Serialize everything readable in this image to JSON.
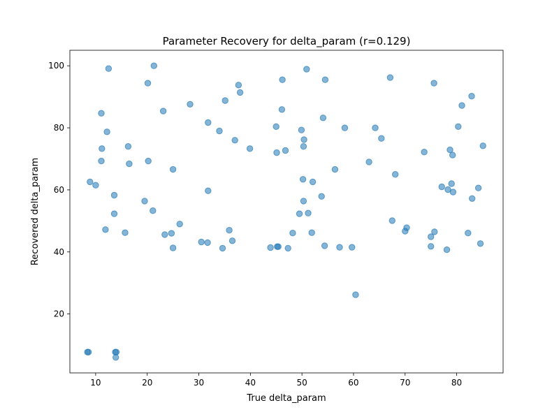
{
  "chart_data": {
    "type": "scatter",
    "title": "Parameter Recovery for delta_param (r=0.129)",
    "xlabel": "True delta_param",
    "ylabel": "Recovered delta_param",
    "xlim": [
      5,
      89
    ],
    "ylim": [
      1,
      105
    ],
    "xticks": [
      10,
      20,
      30,
      40,
      50,
      60,
      70,
      80
    ],
    "yticks": [
      20,
      40,
      60,
      80,
      100
    ],
    "grid": false,
    "marker_color": "#1f77b4",
    "marker_alpha": 0.55,
    "points": [
      [
        8.4,
        7.7
      ],
      [
        8.6,
        7.7
      ],
      [
        13.8,
        7.7
      ],
      [
        14.0,
        7.7
      ],
      [
        13.9,
        6.0
      ],
      [
        8.9,
        62.6
      ],
      [
        10.0,
        61.5
      ],
      [
        11.1,
        84.7
      ],
      [
        11.2,
        73.3
      ],
      [
        11.1,
        69.3
      ],
      [
        11.9,
        47.2
      ],
      [
        12.2,
        78.7
      ],
      [
        12.5,
        99.1
      ],
      [
        13.6,
        58.3
      ],
      [
        13.6,
        52.3
      ],
      [
        15.7,
        46.2
      ],
      [
        16.3,
        74.0
      ],
      [
        16.5,
        68.4
      ],
      [
        19.5,
        56.4
      ],
      [
        20.1,
        94.4
      ],
      [
        20.2,
        69.3
      ],
      [
        21.1,
        53.3
      ],
      [
        21.3,
        100.0
      ],
      [
        23.1,
        85.4
      ],
      [
        23.4,
        45.6
      ],
      [
        24.7,
        46.0
      ],
      [
        25.0,
        66.6
      ],
      [
        25.0,
        41.3
      ],
      [
        26.3,
        49.0
      ],
      [
        28.3,
        87.6
      ],
      [
        30.5,
        43.2
      ],
      [
        31.7,
        43.0
      ],
      [
        31.8,
        81.7
      ],
      [
        31.8,
        59.7
      ],
      [
        34.0,
        79.0
      ],
      [
        34.6,
        41.2
      ],
      [
        35.1,
        88.8
      ],
      [
        35.9,
        47.0
      ],
      [
        36.5,
        43.6
      ],
      [
        37.0,
        76.0
      ],
      [
        37.7,
        93.8
      ],
      [
        38.0,
        91.4
      ],
      [
        39.9,
        73.3
      ],
      [
        43.9,
        41.4
      ],
      [
        45.0,
        80.4
      ],
      [
        45.1,
        72.0
      ],
      [
        45.2,
        41.7
      ],
      [
        45.4,
        41.7
      ],
      [
        46.1,
        85.9
      ],
      [
        46.2,
        95.5
      ],
      [
        46.8,
        72.7
      ],
      [
        47.3,
        41.2
      ],
      [
        48.2,
        46.1
      ],
      [
        49.5,
        52.3
      ],
      [
        49.9,
        79.3
      ],
      [
        50.2,
        63.4
      ],
      [
        50.3,
        74.0
      ],
      [
        50.3,
        56.4
      ],
      [
        50.4,
        76.2
      ],
      [
        50.9,
        98.9
      ],
      [
        51.2,
        52.5
      ],
      [
        51.9,
        46.2
      ],
      [
        52.1,
        62.6
      ],
      [
        53.8,
        57.9
      ],
      [
        54.1,
        83.2
      ],
      [
        54.4,
        42.0
      ],
      [
        54.5,
        95.5
      ],
      [
        56.4,
        66.6
      ],
      [
        57.3,
        41.5
      ],
      [
        58.3,
        80.0
      ],
      [
        59.7,
        41.5
      ],
      [
        60.4,
        26.2
      ],
      [
        63.0,
        69.0
      ],
      [
        64.2,
        80.0
      ],
      [
        65.4,
        76.6
      ],
      [
        67.1,
        96.2
      ],
      [
        67.5,
        50.1
      ],
      [
        68.1,
        65.0
      ],
      [
        70.0,
        46.7
      ],
      [
        70.3,
        47.8
      ],
      [
        73.7,
        72.2
      ],
      [
        75.0,
        44.9
      ],
      [
        75.0,
        41.8
      ],
      [
        75.6,
        94.4
      ],
      [
        75.7,
        46.5
      ],
      [
        77.1,
        61.0
      ],
      [
        78.1,
        40.7
      ],
      [
        78.3,
        60.1
      ],
      [
        78.7,
        72.9
      ],
      [
        79.0,
        62.0
      ],
      [
        79.2,
        71.2
      ],
      [
        79.3,
        59.3
      ],
      [
        80.3,
        80.4
      ],
      [
        81.0,
        87.2
      ],
      [
        82.2,
        46.1
      ],
      [
        83.0,
        57.2
      ],
      [
        82.9,
        90.2
      ],
      [
        84.2,
        60.6
      ],
      [
        84.6,
        42.7
      ],
      [
        85.1,
        74.2
      ]
    ]
  }
}
